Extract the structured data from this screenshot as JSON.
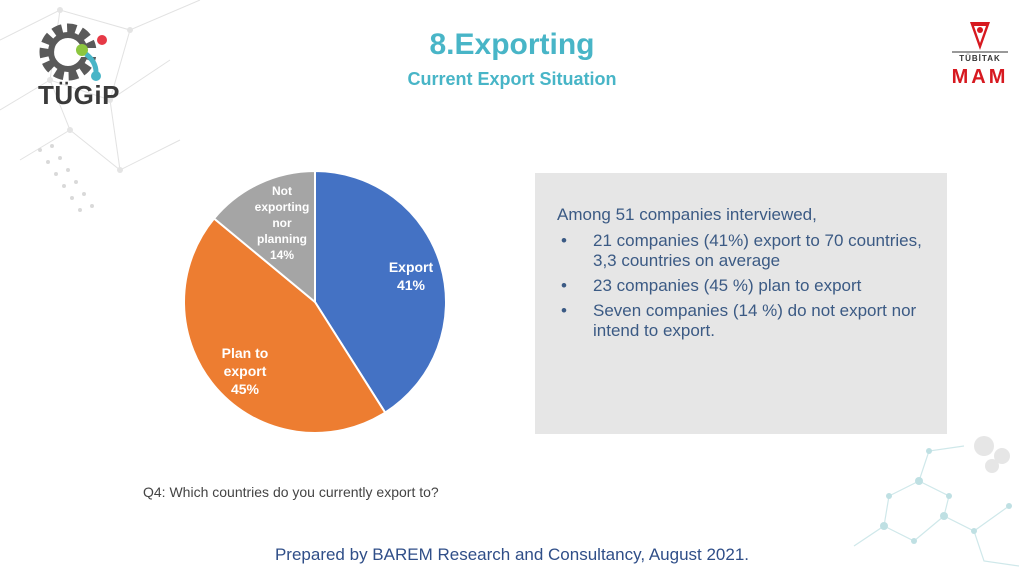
{
  "header": {
    "title": "8.Exporting",
    "subtitle": "Current Export Situation"
  },
  "logos": {
    "left_text": "TÜGiP",
    "right_top": "TÜBİTAK",
    "right_main": "MAM"
  },
  "chart_data": {
    "type": "pie",
    "slices": [
      {
        "label": "Export",
        "value": 41,
        "display": "41%",
        "color": "#4472c4"
      },
      {
        "label": "Plan to export",
        "value": 45,
        "display": "45%",
        "color": "#ed7d31"
      },
      {
        "label": "Not exporting nor planning",
        "value": 14,
        "display": "14%",
        "color": "#a5a5a5"
      }
    ],
    "start_angle_deg": 0,
    "direction": "clockwise"
  },
  "chart_labels": {
    "export_name": "Export",
    "export_pct": "41%",
    "plan_line1": "Plan to",
    "plan_line2": "export",
    "plan_pct": "45%",
    "not_line1": "Not",
    "not_line2": "exporting",
    "not_line3": "nor",
    "not_line4": "planning",
    "not_pct": "14%"
  },
  "info": {
    "intro": "Among 51 companies interviewed,",
    "bullet_char": "•",
    "items": [
      "21 companies (41%) export to 70 countries, 3,3 countries on average",
      "23 companies (45 %) plan to export",
      "Seven companies (14 %) do not export nor intend to export."
    ]
  },
  "question": "Q4: Which countries do you currently export to?",
  "footer": "Prepared by BAREM Research and Consultancy, August 2021."
}
